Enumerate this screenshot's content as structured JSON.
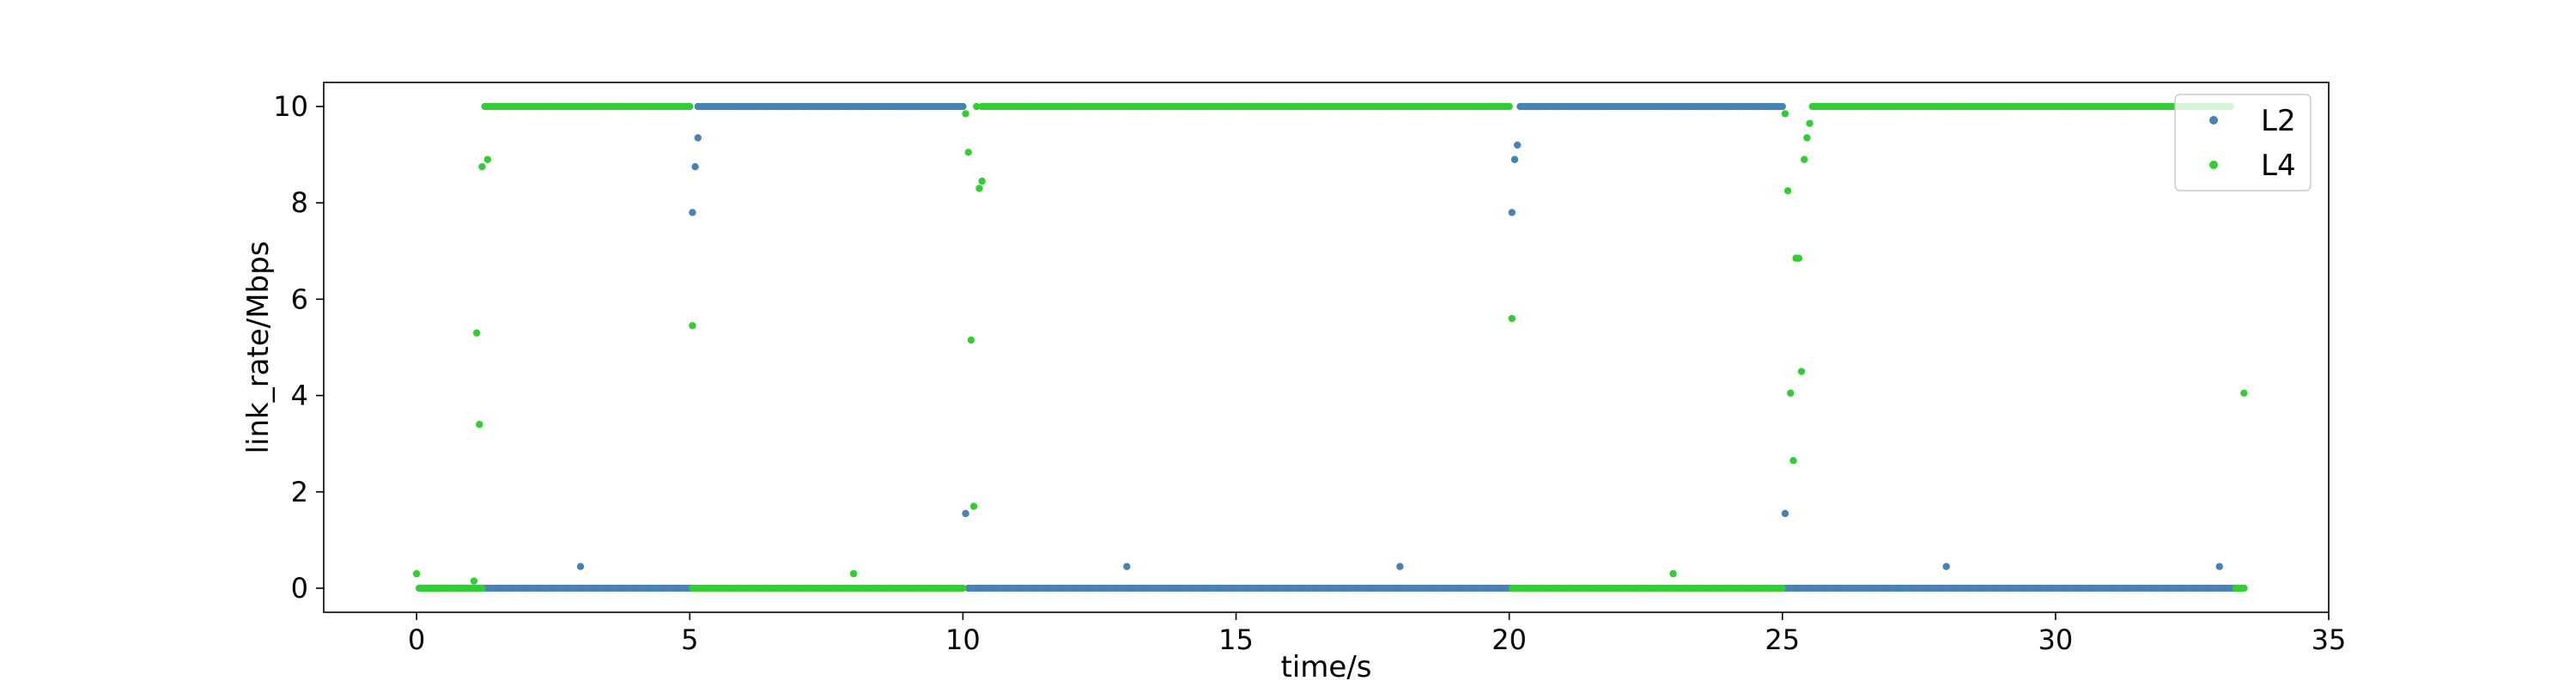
{
  "chart_data": {
    "type": "scatter",
    "title": "",
    "xlabel": "time/s",
    "ylabel": "link_rate/Mbps",
    "xlim": [
      -1.7,
      35.0
    ],
    "ylim": [
      -0.5,
      10.5
    ],
    "xticks": [
      0,
      5,
      10,
      15,
      20,
      25,
      30,
      35
    ],
    "yticks": [
      0,
      2,
      4,
      6,
      8,
      10
    ],
    "grid": false,
    "legend_position": "top-right",
    "series": [
      {
        "name": "L2",
        "color": "#4682b4",
        "segments": [
          {
            "x_start": 0.05,
            "x_end": 5.0,
            "y": 0,
            "step": 0.05
          },
          {
            "x_start": 5.15,
            "x_end": 10.0,
            "y": 10,
            "step": 0.05
          },
          {
            "x_start": 10.1,
            "x_end": 20.0,
            "y": 0,
            "step": 0.05
          },
          {
            "x_start": 20.2,
            "x_end": 25.0,
            "y": 10,
            "step": 0.05
          },
          {
            "x_start": 25.05,
            "x_end": 33.4,
            "y": 0,
            "step": 0.05
          }
        ],
        "points": [
          [
            3.0,
            0.45
          ],
          [
            5.05,
            7.8
          ],
          [
            5.1,
            8.75
          ],
          [
            5.15,
            9.35
          ],
          [
            10.05,
            1.55
          ],
          [
            13.0,
            0.45
          ],
          [
            18.0,
            0.45
          ],
          [
            20.05,
            7.8
          ],
          [
            20.1,
            8.9
          ],
          [
            20.15,
            9.2
          ],
          [
            25.05,
            1.55
          ],
          [
            28.0,
            0.45
          ],
          [
            33.0,
            0.45
          ]
        ]
      },
      {
        "name": "L4",
        "color": "#32cd32",
        "segments": [
          {
            "x_start": 0.05,
            "x_end": 1.2,
            "y": 0,
            "step": 0.05
          },
          {
            "x_start": 1.25,
            "x_end": 5.0,
            "y": 10,
            "step": 0.05
          },
          {
            "x_start": 5.05,
            "x_end": 10.0,
            "y": 0,
            "step": 0.05
          },
          {
            "x_start": 10.35,
            "x_end": 20.0,
            "y": 10,
            "step": 0.05
          },
          {
            "x_start": 20.05,
            "x_end": 25.0,
            "y": 0,
            "step": 0.05
          },
          {
            "x_start": 25.55,
            "x_end": 33.2,
            "y": 10,
            "step": 0.05
          },
          {
            "x_start": 33.3,
            "x_end": 33.45,
            "y": 0,
            "step": 0.05
          }
        ],
        "points": [
          [
            0.0,
            0.3
          ],
          [
            1.05,
            0.15
          ],
          [
            1.1,
            5.3
          ],
          [
            1.15,
            3.4
          ],
          [
            1.2,
            8.75
          ],
          [
            1.3,
            8.9
          ],
          [
            5.05,
            5.45
          ],
          [
            8.0,
            0.3
          ],
          [
            10.05,
            9.85
          ],
          [
            10.1,
            9.05
          ],
          [
            10.15,
            5.15
          ],
          [
            10.2,
            1.7
          ],
          [
            10.25,
            10.0
          ],
          [
            10.3,
            8.3
          ],
          [
            10.35,
            8.45
          ],
          [
            20.05,
            5.6
          ],
          [
            23.0,
            0.3
          ],
          [
            25.05,
            9.85
          ],
          [
            25.1,
            8.25
          ],
          [
            25.15,
            4.05
          ],
          [
            25.2,
            2.65
          ],
          [
            25.25,
            6.85
          ],
          [
            25.3,
            6.85
          ],
          [
            25.35,
            4.5
          ],
          [
            25.4,
            8.9
          ],
          [
            25.45,
            9.35
          ],
          [
            25.5,
            9.65
          ],
          [
            33.45,
            4.05
          ]
        ]
      }
    ]
  }
}
